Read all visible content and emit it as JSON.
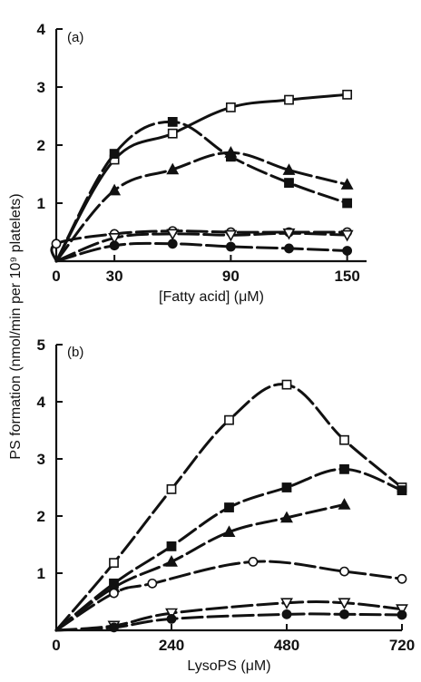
{
  "figure": {
    "ylabel": "PS formation (nmol/min per 10⁹ platelets)"
  },
  "chart_data": [
    {
      "type": "line",
      "panel_label": "(a)",
      "xlabel": "[Fatty acid] (μM)",
      "ylabel": "PS formation (nmol/min per 10⁹ platelets)",
      "xlim": [
        0,
        160
      ],
      "ylim": [
        0,
        4
      ],
      "xticks": [
        0,
        30,
        90,
        150
      ],
      "xtick_labels": [
        "0",
        "30",
        "90",
        "150"
      ],
      "yticks": [
        0,
        1,
        2,
        3,
        4
      ],
      "ytick_labels": [
        "",
        "1",
        "2",
        "3",
        "4"
      ],
      "grid": false,
      "series": [
        {
          "marker": "open-square",
          "dash": "solid",
          "x": [
            30,
            60,
            90,
            120,
            150
          ],
          "y": [
            1.75,
            2.2,
            2.65,
            2.78,
            2.87
          ]
        },
        {
          "marker": "filled-square",
          "dash": "long-dash",
          "x": [
            30,
            60,
            90,
            120,
            150
          ],
          "y": [
            1.85,
            2.4,
            1.8,
            1.35,
            1.0
          ]
        },
        {
          "marker": "filled-triangle",
          "dash": "long-dash",
          "x": [
            30,
            60,
            90,
            120,
            150
          ],
          "y": [
            1.22,
            1.58,
            1.87,
            1.57,
            1.32
          ]
        },
        {
          "marker": "open-circle",
          "dash": "long-dash",
          "x": [
            0,
            30,
            60,
            90,
            120,
            150
          ],
          "y": [
            0.3,
            0.47,
            0.52,
            0.5,
            0.5,
            0.5
          ]
        },
        {
          "marker": "open-triangle-down",
          "dash": "long-dash",
          "x": [
            30,
            60,
            90,
            120,
            150
          ],
          "y": [
            0.4,
            0.47,
            0.45,
            0.48,
            0.45
          ]
        },
        {
          "marker": "filled-circle",
          "dash": "long-dash",
          "x": [
            30,
            60,
            90,
            120,
            150
          ],
          "y": [
            0.27,
            0.3,
            0.25,
            0.22,
            0.18
          ]
        }
      ]
    },
    {
      "type": "line",
      "panel_label": "(b)",
      "xlabel": "LysoPS (μM)",
      "ylabel": "PS formation (nmol/min per 10⁹ platelets)",
      "xlim": [
        0,
        720
      ],
      "ylim": [
        0,
        5
      ],
      "xticks": [
        0,
        240,
        480,
        720
      ],
      "xtick_labels": [
        "0",
        "240",
        "480",
        "720"
      ],
      "yticks": [
        0,
        1,
        2,
        3,
        4,
        5
      ],
      "ytick_labels": [
        "",
        "1",
        "2",
        "3",
        "4",
        "5"
      ],
      "grid": false,
      "series": [
        {
          "marker": "open-square",
          "dash": "long-dash",
          "x": [
            0,
            120,
            240,
            360,
            480,
            600,
            720
          ],
          "y": [
            0,
            1.18,
            2.47,
            3.68,
            4.3,
            3.33,
            2.5
          ]
        },
        {
          "marker": "filled-square",
          "dash": "long-dash",
          "x": [
            0,
            120,
            240,
            360,
            480,
            600,
            720
          ],
          "y": [
            0,
            0.82,
            1.47,
            2.15,
            2.5,
            2.82,
            2.45
          ]
        },
        {
          "marker": "filled-triangle",
          "dash": "long-dash",
          "x": [
            0,
            120,
            240,
            360,
            480,
            600
          ],
          "y": [
            0,
            0.75,
            1.2,
            1.72,
            1.97,
            2.2
          ]
        },
        {
          "marker": "open-circle",
          "dash": "long-dash",
          "x": [
            0,
            120,
            200,
            410,
            600,
            720
          ],
          "y": [
            0,
            0.65,
            0.82,
            1.2,
            1.03,
            0.9
          ]
        },
        {
          "marker": "open-triangle-down",
          "dash": "long-dash",
          "x": [
            0,
            120,
            240,
            480,
            600,
            720
          ],
          "y": [
            0,
            0.08,
            0.3,
            0.48,
            0.48,
            0.37
          ]
        },
        {
          "marker": "filled-circle",
          "dash": "long-dash",
          "x": [
            0,
            120,
            240,
            480,
            600,
            720
          ],
          "y": [
            0,
            0.05,
            0.2,
            0.28,
            0.28,
            0.27
          ]
        }
      ]
    }
  ]
}
